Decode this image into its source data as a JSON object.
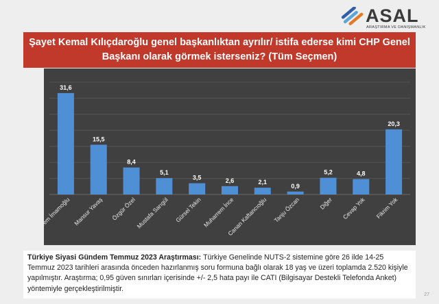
{
  "brand": {
    "name": "ASAL",
    "tagline": "ARAŞTIRMA VE DANIŞMANLIK",
    "colors": [
      "#2e5fa8",
      "#5aa6d8",
      "#e07b2a"
    ]
  },
  "chart_data": {
    "type": "bar",
    "title": "Şayet Kemal Kılıçdaroğlu genel başkanlıktan ayrılır/ istifa ederse kimi CHP Genel Başkanı olarak görmek isterseniz? (Tüm Seçmen)",
    "title_lines": [
      "Şayet Kemal Kılıçdaroğlu genel başkanlıktan ayrılır/ istifa ederse kimi CHP Genel",
      "Başkanı olarak görmek isterseniz? (Tüm Seçmen)"
    ],
    "categories": [
      "Ekrem İmamoğlu",
      "Mansur Yavaş",
      "Özgür Özel",
      "Mustafa Sarıgül",
      "Gürsel Tekin",
      "Muharrem İnce",
      "Canan Kaftancıoğlu",
      "Tanju Özcan",
      "Diğer",
      "Cevap Yok",
      "Fikrim Yok"
    ],
    "values": [
      31.6,
      15.5,
      8.4,
      5.1,
      3.5,
      2.6,
      2.1,
      0.9,
      5.2,
      4.8,
      20.3
    ],
    "value_labels": [
      "31,6",
      "15,5",
      "8,4",
      "5,1",
      "3,5",
      "2,6",
      "2,1",
      "0,9",
      "5,2",
      "4,8",
      "20,3"
    ],
    "ylim": [
      0,
      35
    ],
    "grid": true,
    "bar_color": "#4f8fd6",
    "background": "#404040"
  },
  "note": {
    "heading": "Türkiye Siyasi Gündem Temmuz 2023 Araştırması:",
    "body": "Türkiye Genelinde NUTS-2 sistemine göre 26 ilde 14-25 Temmuz 2023 tarihleri arasında önceden hazırlanmış soru formuna bağlı olarak 18 yaş ve üzeri toplamda 2.520 kişiyle yapılmıştır. Araştırma; 0,95 güven sınırları içerisinde +/- 2,5 hata payı ile CATI (Bilgisayar Destekli Telefonda Anket) yöntemiyle gerçekleştirilmiştir."
  },
  "page_number": "27"
}
